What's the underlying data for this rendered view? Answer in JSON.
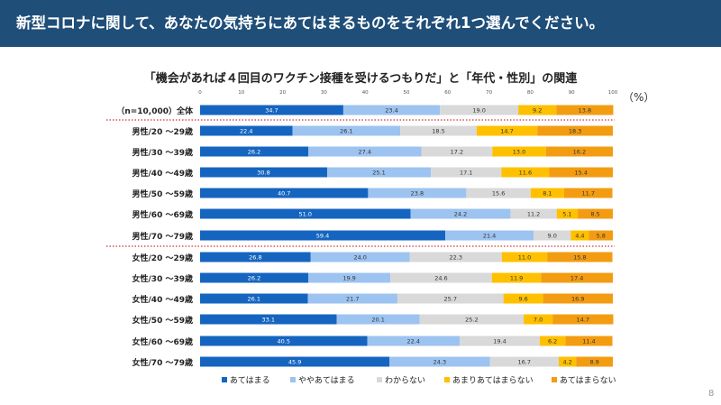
{
  "header": {
    "title": "新型コロナに関して、あなたの気持ちにあてはまるものをそれぞれ1つ選んでください。"
  },
  "chart_title": "「機会があれば４回目のワクチン接種を受けるつもりだ」と「年代・性別」の関連",
  "unit_label": "（%）",
  "page_number": "8",
  "colors": {
    "header_bg": "#1f4e79",
    "separator": "#c00000",
    "series": [
      "#1565c0",
      "#9dc3f0",
      "#d9d9d9",
      "#ffc000",
      "#f39c12"
    ]
  },
  "chart_data": {
    "type": "bar",
    "orientation": "horizontal",
    "stacked": true,
    "xlim": [
      0,
      100
    ],
    "xticks": [
      0,
      10,
      20,
      30,
      40,
      50,
      60,
      70,
      80,
      90,
      100
    ],
    "categories": [
      "（n=10,000）全体",
      "男性/20 ～29歳",
      "男性/30 ～39歳",
      "男性/40 ～49歳",
      "男性/50 ～59歳",
      "男性/60 ～69歳",
      "男性/70 ～79歳",
      "女性/20 ～29歳",
      "女性/30 ～39歳",
      "女性/40 ～49歳",
      "女性/50 ～59歳",
      "女性/60 ～69歳",
      "女性/70 ～79歳"
    ],
    "series": [
      {
        "name": "あてはまる",
        "color": "#1565c0",
        "values": [
          34.7,
          22.4,
          26.2,
          30.8,
          40.7,
          51.0,
          59.4,
          26.8,
          26.2,
          26.1,
          33.1,
          40.5,
          45.9
        ]
      },
      {
        "name": "ややあてはまる",
        "color": "#9dc3f0",
        "values": [
          23.4,
          26.1,
          27.4,
          25.1,
          23.8,
          24.2,
          21.4,
          24.0,
          19.9,
          21.7,
          20.1,
          22.4,
          24.3
        ]
      },
      {
        "name": "わからない",
        "color": "#d9d9d9",
        "values": [
          19.0,
          18.5,
          17.2,
          17.1,
          15.6,
          11.2,
          9.0,
          22.3,
          24.6,
          25.7,
          25.2,
          19.4,
          16.7
        ]
      },
      {
        "name": "あまりあてはまらない",
        "color": "#ffc000",
        "values": [
          9.2,
          14.7,
          13.0,
          11.6,
          8.1,
          5.1,
          4.4,
          11.0,
          11.9,
          9.6,
          7.0,
          6.2,
          4.2
        ]
      },
      {
        "name": "あてはまらない",
        "color": "#f39c12",
        "values": [
          13.8,
          18.3,
          16.2,
          15.4,
          11.7,
          8.5,
          5.8,
          15.8,
          17.4,
          16.9,
          14.7,
          11.4,
          8.9
        ]
      }
    ]
  }
}
